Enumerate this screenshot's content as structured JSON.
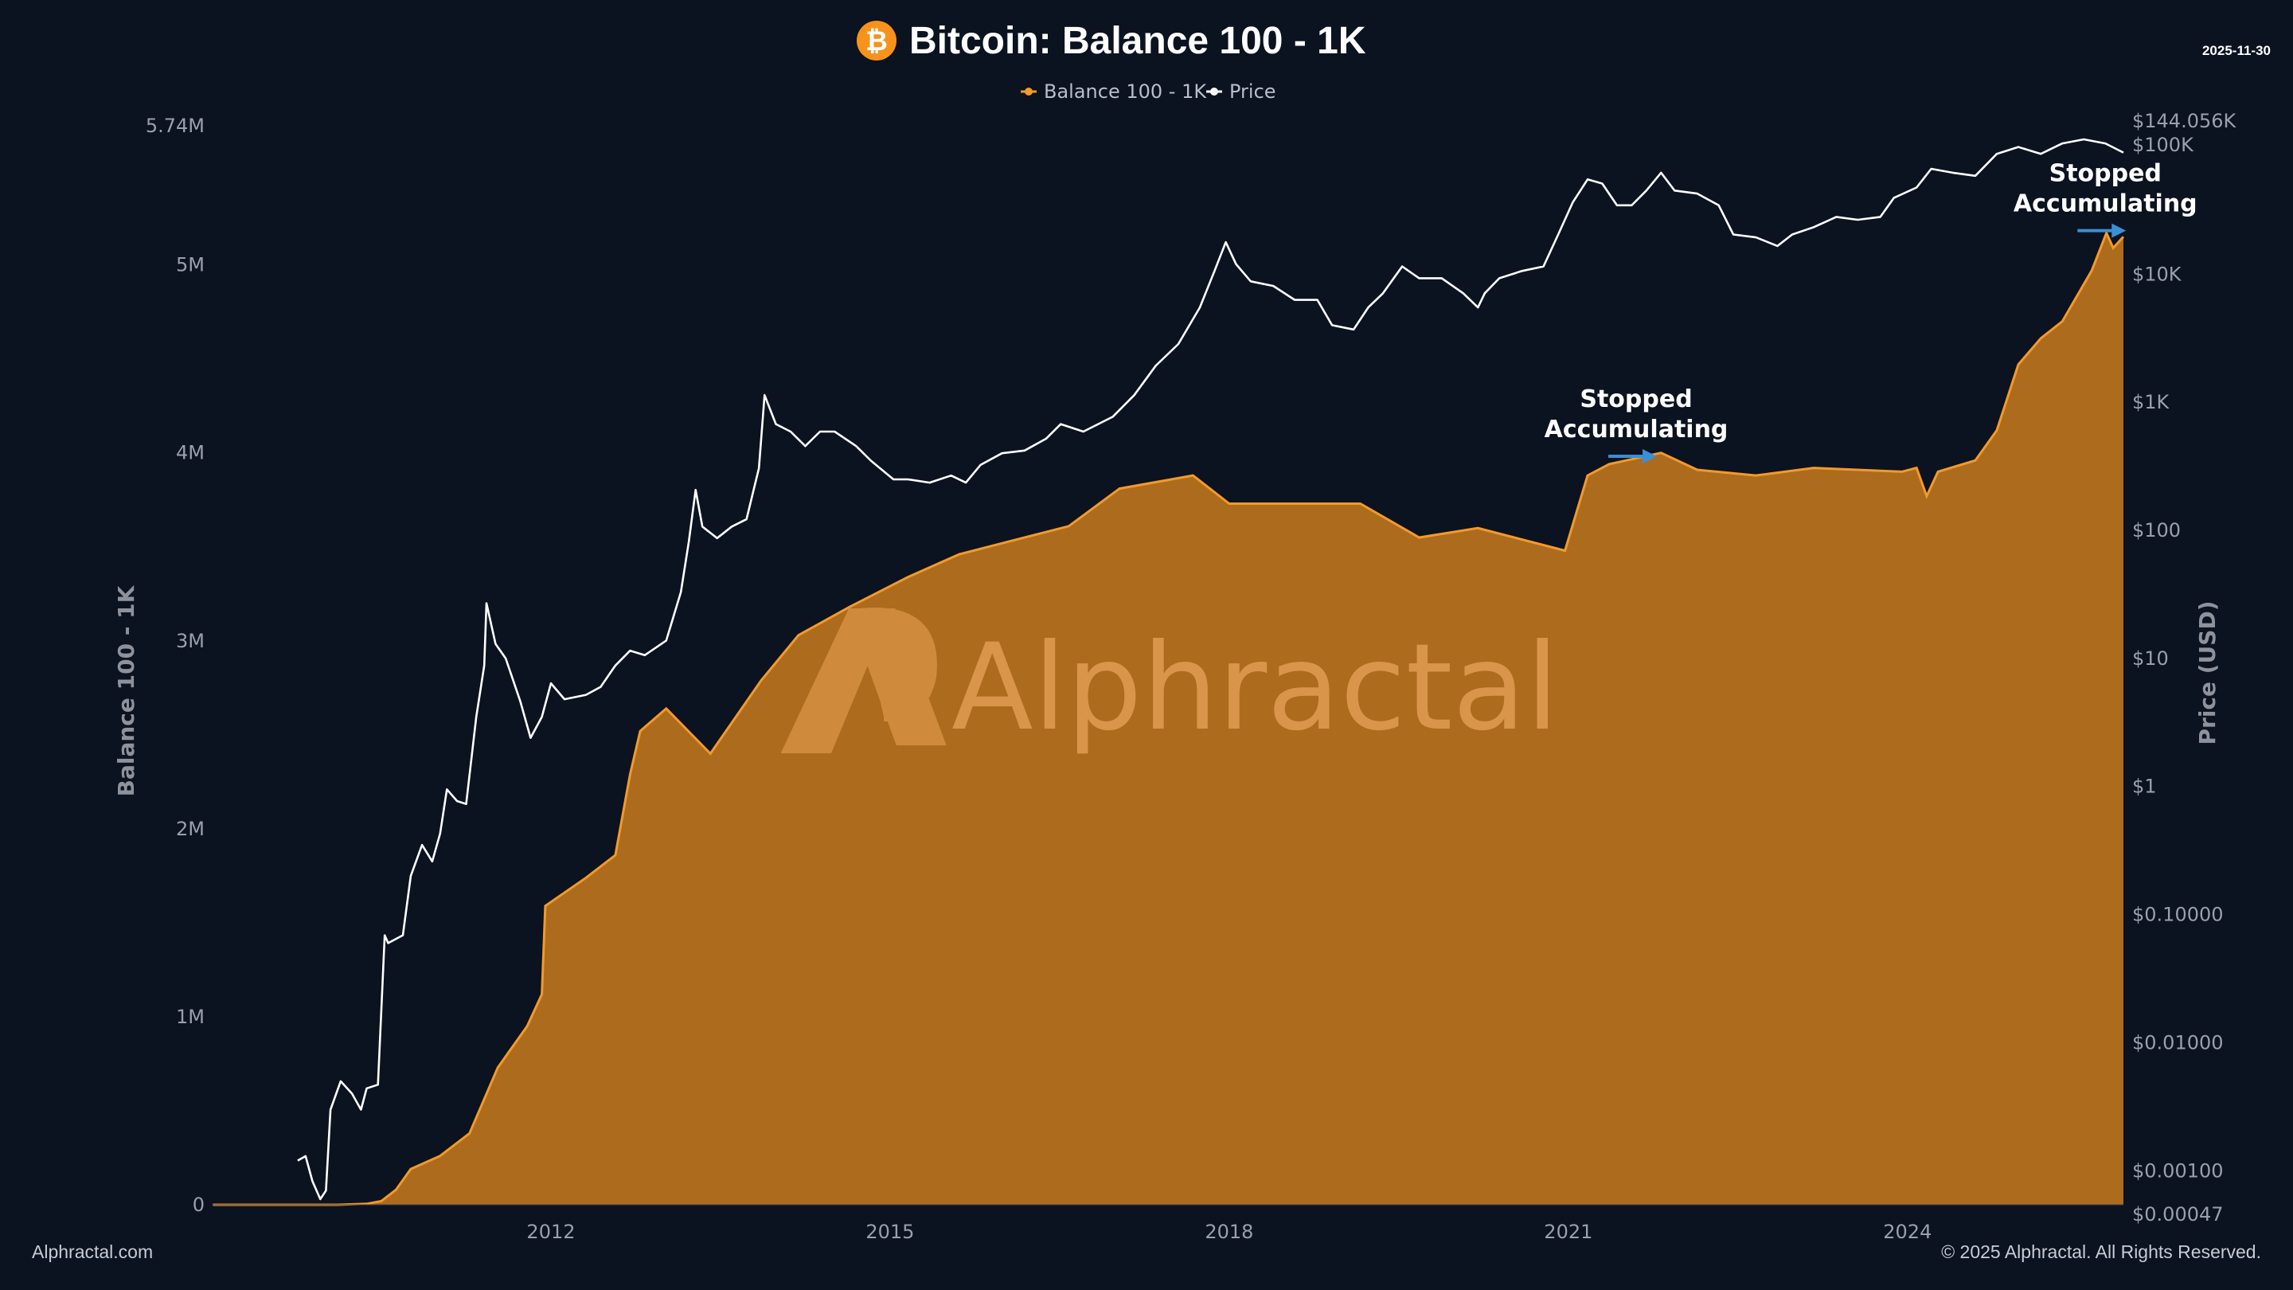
{
  "header": {
    "title": "Bitcoin: Balance 100 - 1K",
    "date": "2025-11-30",
    "logo_icon": "bitcoin-icon"
  },
  "footer": {
    "left": "Alphractal.com",
    "right": "© 2025 Alphractal. All Rights Reserved."
  },
  "watermark": "Alphractal",
  "colors": {
    "background": "#0b1220",
    "balance_line": "#f39a2a",
    "balance_fill": "#b36e1e",
    "price_line": "#ffffff",
    "annotation_arrow": "#3a8fd6"
  },
  "chart_data": {
    "type": "area",
    "title": "Bitcoin: Balance 100 - 1K",
    "xlabel": "",
    "ylabel": "Balance 100 - 1K",
    "ylabel_right": "Price (USD)",
    "xlim": [
      2009.0,
      2025.91
    ],
    "ylim": [
      0,
      5.74
    ],
    "ylim_right": [
      0.00047,
      144056
    ],
    "y_right_scale": "log",
    "grid": false,
    "legend_placement": "top-center",
    "x_ticks": [
      {
        "value": 2012,
        "label": "2012"
      },
      {
        "value": 2015,
        "label": "2015"
      },
      {
        "value": 2018,
        "label": "2018"
      },
      {
        "value": 2021,
        "label": "2021"
      },
      {
        "value": 2024,
        "label": "2024"
      }
    ],
    "y_ticks": [
      {
        "value": 0,
        "label": "0"
      },
      {
        "value": 1,
        "label": "1M"
      },
      {
        "value": 2,
        "label": "2M"
      },
      {
        "value": 3,
        "label": "3M"
      },
      {
        "value": 4,
        "label": "4M"
      },
      {
        "value": 5,
        "label": "5M"
      },
      {
        "value": 5.74,
        "label": "5.74M"
      }
    ],
    "y_right_ticks": [
      {
        "value": 0.00047,
        "label": "$0.00047"
      },
      {
        "value": 0.001,
        "label": "$0.00100"
      },
      {
        "value": 0.01,
        "label": "$0.01000"
      },
      {
        "value": 0.1,
        "label": "$0.10000"
      },
      {
        "value": 1,
        "label": "$1"
      },
      {
        "value": 10,
        "label": "$10"
      },
      {
        "value": 100,
        "label": "$100"
      },
      {
        "value": 1000,
        "label": "$1K"
      },
      {
        "value": 10000,
        "label": "$10K"
      },
      {
        "value": 100000,
        "label": "$100K"
      },
      {
        "value": 144056,
        "label": "$144.056K"
      }
    ],
    "series": [
      {
        "name": "Balance 100 - 1K",
        "unit": "M BTC",
        "axis": "left",
        "points": [
          [
            2009.01,
            0
          ],
          [
            2010.11,
            0
          ],
          [
            2010.37,
            0.005
          ],
          [
            2010.5,
            0.02
          ],
          [
            2010.63,
            0.08
          ],
          [
            2010.76,
            0.19
          ],
          [
            2011.02,
            0.26
          ],
          [
            2011.28,
            0.38
          ],
          [
            2011.53,
            0.73
          ],
          [
            2011.79,
            0.95
          ],
          [
            2011.92,
            1.12
          ],
          [
            2011.95,
            1.59
          ],
          [
            2012.31,
            1.74
          ],
          [
            2012.57,
            1.86
          ],
          [
            2012.7,
            2.29
          ],
          [
            2012.79,
            2.52
          ],
          [
            2013.02,
            2.64
          ],
          [
            2013.41,
            2.4
          ],
          [
            2013.86,
            2.79
          ],
          [
            2014.19,
            3.03
          ],
          [
            2014.64,
            3.18
          ],
          [
            2015.16,
            3.34
          ],
          [
            2015.61,
            3.46
          ],
          [
            2016.06,
            3.53
          ],
          [
            2016.58,
            3.61
          ],
          [
            2017.03,
            3.81
          ],
          [
            2017.68,
            3.88
          ],
          [
            2018.0,
            3.73
          ],
          [
            2019.16,
            3.73
          ],
          [
            2019.68,
            3.55
          ],
          [
            2020.2,
            3.6
          ],
          [
            2020.97,
            3.48
          ],
          [
            2021.17,
            3.88
          ],
          [
            2021.36,
            3.94
          ],
          [
            2021.82,
            4.0
          ],
          [
            2022.14,
            3.91
          ],
          [
            2022.66,
            3.88
          ],
          [
            2023.17,
            3.92
          ],
          [
            2023.95,
            3.9
          ],
          [
            2024.08,
            3.92
          ],
          [
            2024.17,
            3.77
          ],
          [
            2024.27,
            3.9
          ],
          [
            2024.6,
            3.96
          ],
          [
            2024.79,
            4.12
          ],
          [
            2024.98,
            4.47
          ],
          [
            2025.18,
            4.61
          ],
          [
            2025.37,
            4.7
          ],
          [
            2025.63,
            4.97
          ],
          [
            2025.76,
            5.17
          ],
          [
            2025.82,
            5.09
          ],
          [
            2025.91,
            5.15
          ]
        ]
      },
      {
        "name": "Price",
        "unit": "USD",
        "axis": "right",
        "points": [
          [
            2009.76,
            0.0012
          ],
          [
            2009.83,
            0.0013
          ],
          [
            2009.89,
            0.00083
          ],
          [
            2009.96,
            0.0006
          ],
          [
            2010.01,
            0.0007
          ],
          [
            2010.05,
            0.003
          ],
          [
            2010.14,
            0.005
          ],
          [
            2010.24,
            0.004
          ],
          [
            2010.32,
            0.003
          ],
          [
            2010.37,
            0.0044
          ],
          [
            2010.47,
            0.0047
          ],
          [
            2010.53,
            0.069
          ],
          [
            2010.56,
            0.06
          ],
          [
            2010.69,
            0.069
          ],
          [
            2010.76,
            0.2
          ],
          [
            2010.86,
            0.35
          ],
          [
            2010.95,
            0.26
          ],
          [
            2011.02,
            0.43
          ],
          [
            2011.08,
            0.95
          ],
          [
            2011.17,
            0.77
          ],
          [
            2011.25,
            0.73
          ],
          [
            2011.34,
            3.5
          ],
          [
            2011.41,
            8.8
          ],
          [
            2011.43,
            27
          ],
          [
            2011.51,
            13
          ],
          [
            2011.6,
            10
          ],
          [
            2011.73,
            4.6
          ],
          [
            2011.82,
            2.4
          ],
          [
            2011.92,
            3.5
          ],
          [
            2012.0,
            6.4
          ],
          [
            2012.12,
            4.8
          ],
          [
            2012.31,
            5.2
          ],
          [
            2012.44,
            6.0
          ],
          [
            2012.57,
            8.8
          ],
          [
            2012.7,
            11.5
          ],
          [
            2012.83,
            10.6
          ],
          [
            2013.02,
            13.8
          ],
          [
            2013.15,
            33
          ],
          [
            2013.22,
            82
          ],
          [
            2013.28,
            207
          ],
          [
            2013.34,
            107
          ],
          [
            2013.47,
            87
          ],
          [
            2013.6,
            107
          ],
          [
            2013.73,
            122
          ],
          [
            2013.84,
            306
          ],
          [
            2013.89,
            1137
          ],
          [
            2013.99,
            675
          ],
          [
            2014.12,
            590
          ],
          [
            2014.25,
            455
          ],
          [
            2014.38,
            590
          ],
          [
            2014.51,
            590
          ],
          [
            2014.7,
            455
          ],
          [
            2014.83,
            350
          ],
          [
            2015.03,
            250
          ],
          [
            2015.16,
            250
          ],
          [
            2015.35,
            236
          ],
          [
            2015.54,
            268
          ],
          [
            2015.67,
            236
          ],
          [
            2015.8,
            324
          ],
          [
            2015.99,
            400
          ],
          [
            2016.19,
            420
          ],
          [
            2016.38,
            520
          ],
          [
            2016.51,
            675
          ],
          [
            2016.71,
            590
          ],
          [
            2016.97,
            770
          ],
          [
            2017.16,
            1137
          ],
          [
            2017.35,
            1930
          ],
          [
            2017.55,
            2850
          ],
          [
            2017.74,
            5500
          ],
          [
            2017.87,
            10600
          ],
          [
            2017.97,
            17800
          ],
          [
            2018.06,
            12000
          ],
          [
            2018.19,
            8800
          ],
          [
            2018.39,
            8100
          ],
          [
            2018.58,
            6300
          ],
          [
            2018.78,
            6300
          ],
          [
            2018.91,
            4000
          ],
          [
            2019.1,
            3700
          ],
          [
            2019.23,
            5500
          ],
          [
            2019.36,
            7100
          ],
          [
            2019.53,
            11500
          ],
          [
            2019.68,
            9300
          ],
          [
            2019.88,
            9300
          ],
          [
            2020.07,
            7100
          ],
          [
            2020.2,
            5500
          ],
          [
            2020.26,
            7100
          ],
          [
            2020.39,
            9300
          ],
          [
            2020.59,
            10600
          ],
          [
            2020.78,
            11500
          ],
          [
            2020.91,
            20400
          ],
          [
            2021.04,
            36500
          ],
          [
            2021.17,
            55000
          ],
          [
            2021.3,
            51000
          ],
          [
            2021.43,
            34500
          ],
          [
            2021.56,
            34500
          ],
          [
            2021.69,
            45000
          ],
          [
            2021.82,
            62000
          ],
          [
            2021.94,
            45000
          ],
          [
            2022.14,
            42600
          ],
          [
            2022.33,
            34500
          ],
          [
            2022.46,
            20400
          ],
          [
            2022.66,
            19400
          ],
          [
            2022.85,
            16600
          ],
          [
            2022.98,
            20400
          ],
          [
            2023.17,
            23300
          ],
          [
            2023.37,
            28000
          ],
          [
            2023.56,
            26600
          ],
          [
            2023.76,
            28000
          ],
          [
            2023.88,
            39500
          ],
          [
            2024.08,
            47500
          ],
          [
            2024.21,
            66500
          ],
          [
            2024.4,
            62000
          ],
          [
            2024.6,
            58600
          ],
          [
            2024.79,
            87000
          ],
          [
            2024.98,
            98500
          ],
          [
            2025.18,
            87000
          ],
          [
            2025.37,
            105000
          ],
          [
            2025.56,
            113000
          ],
          [
            2025.75,
            105000
          ],
          [
            2025.91,
            89000
          ]
        ]
      }
    ],
    "annotations": [
      {
        "text_line1": "Stopped",
        "text_line2": "Accumulating",
        "x": 2021.6,
        "y": 4.05,
        "arrow": "right"
      },
      {
        "text_line1": "Stopped",
        "text_line2": "Accumulating",
        "x": 2025.75,
        "y": 5.25,
        "arrow": "right"
      }
    ]
  }
}
